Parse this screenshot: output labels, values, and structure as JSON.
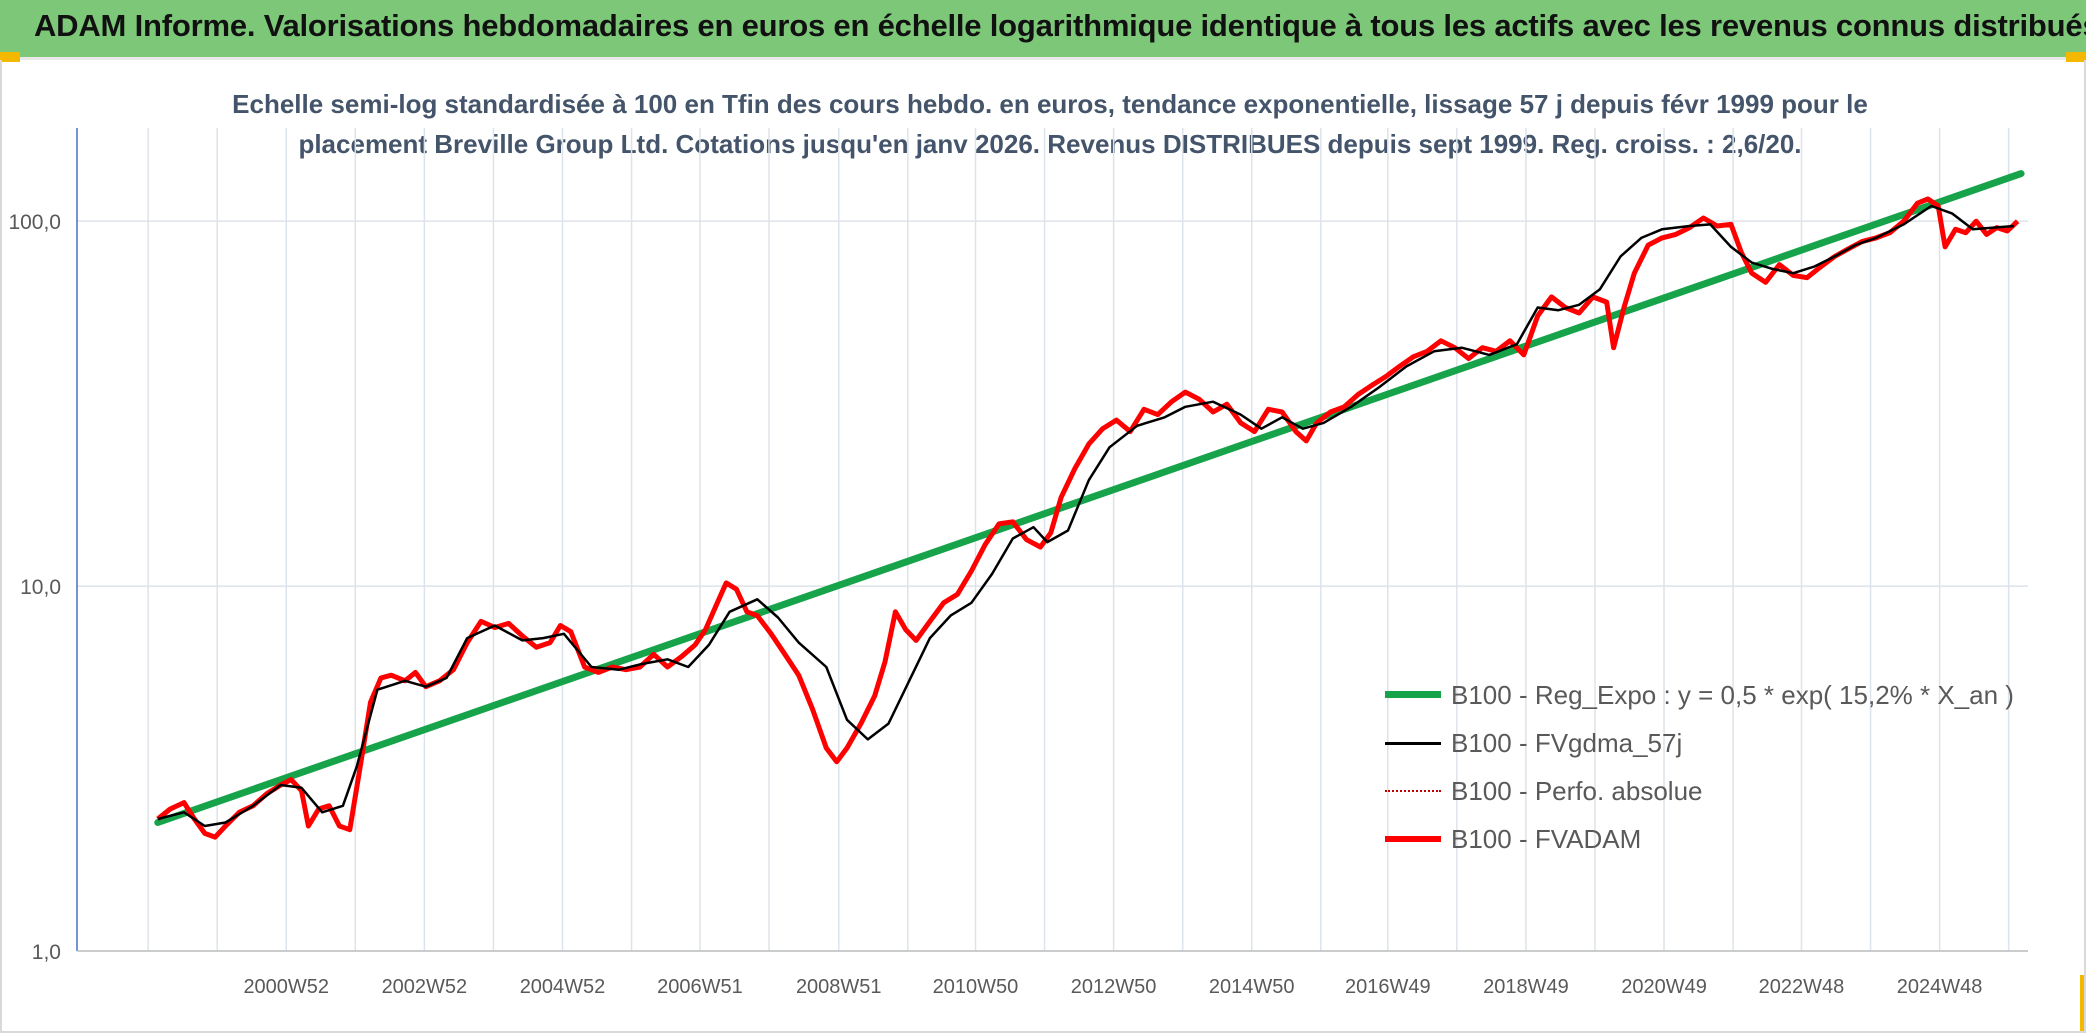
{
  "header": {
    "title": "ADAM Informe. Valorisations hebdomadaires en euros en échelle logarithmique identique à tous les actifs avec les revenus connus distribués"
  },
  "chart_data": {
    "type": "line",
    "title": "",
    "subtitle_lines": [
      "Echelle semi-log standardisée à 100 en Tfin des cours hebdo. en euros, tendance exponentielle, lissage 57 j depuis févr 1999 pour le",
      "placement Breville Group Ltd. Cotations jusqu'en janv 2026. Revenus DISTRIBUES depuis sept 1999. Reg. croiss. : 2,6/20."
    ],
    "xlabel": "",
    "ylabel": "",
    "y_scale": "log",
    "ylim": [
      1,
      180
    ],
    "xlim": [
      1997.95,
      2026.2
    ],
    "y_ticks": [
      1,
      10,
      100
    ],
    "y_tick_labels": [
      "1,0",
      "10,0",
      "100,0"
    ],
    "x_ticks": [
      2000.98,
      2002.98,
      2004.98,
      2006.97,
      2008.98,
      2010.96,
      2012.96,
      2014.96,
      2016.93,
      2018.93,
      2020.93,
      2022.92,
      2024.92
    ],
    "x_tick_labels": [
      "2000W52",
      "2002W52",
      "2004W52",
      "2006W51",
      "2008W51",
      "2010W50",
      "2012W50",
      "2014W50",
      "2016W49",
      "2018W49",
      "2020W49",
      "2022W48",
      "2024W48"
    ],
    "grid": true,
    "legend_position": "bottom-right",
    "series": [
      {
        "name": "B100 - Reg_Expo : y = 0,5 * exp( 15,2% *  X_an )",
        "color": "#16a34a",
        "style": "solid-thick",
        "x": [
          1999.12,
          2026.1
        ],
        "y": [
          2.25,
          135
        ]
      },
      {
        "name": "B100 - FVgdma_57j",
        "color": "#000000",
        "style": "solid",
        "x": [
          1999.12,
          1999.5,
          1999.8,
          2000.1,
          2000.5,
          2000.9,
          2001.2,
          2001.5,
          2001.8,
          2002.0,
          2002.3,
          2002.7,
          2003.0,
          2003.3,
          2003.6,
          2004.0,
          2004.4,
          2004.7,
          2005.0,
          2005.4,
          2005.8,
          2006.1,
          2006.5,
          2006.8,
          2007.1,
          2007.4,
          2007.8,
          2008.1,
          2008.4,
          2008.8,
          2009.1,
          2009.4,
          2009.7,
          2010.0,
          2010.3,
          2010.6,
          2010.9,
          2011.2,
          2011.5,
          2011.8,
          2012.0,
          2012.3,
          2012.6,
          2012.9,
          2013.3,
          2013.7,
          2014.0,
          2014.4,
          2014.8,
          2015.1,
          2015.4,
          2015.7,
          2016.0,
          2016.4,
          2016.8,
          2017.2,
          2017.6,
          2018.0,
          2018.4,
          2018.8,
          2019.1,
          2019.4,
          2019.7,
          2020.0,
          2020.3,
          2020.6,
          2020.9,
          2021.3,
          2021.6,
          2021.9,
          2022.2,
          2022.5,
          2022.8,
          2023.1,
          2023.4,
          2023.7,
          2024.0,
          2024.4,
          2024.8,
          2025.1,
          2025.4,
          2025.7,
          2026.0
        ],
        "y": [
          2.3,
          2.4,
          2.2,
          2.25,
          2.5,
          2.85,
          2.8,
          2.4,
          2.5,
          3.2,
          5.2,
          5.5,
          5.3,
          5.6,
          7.2,
          7.8,
          7.1,
          7.2,
          7.4,
          6.0,
          5.9,
          6.1,
          6.3,
          6.0,
          6.9,
          8.5,
          9.2,
          8.2,
          7.0,
          6.0,
          4.3,
          3.8,
          4.2,
          5.5,
          7.2,
          8.3,
          9.0,
          10.8,
          13.5,
          14.5,
          13.2,
          14.2,
          19.5,
          24.0,
          27.5,
          29.0,
          31.0,
          32.0,
          29.5,
          27.0,
          29.0,
          27.0,
          28.0,
          31.0,
          35.0,
          40.0,
          44.0,
          45.0,
          43.0,
          46.0,
          58.0,
          57.0,
          59.0,
          65.0,
          80.0,
          90.0,
          95.0,
          97.0,
          98.0,
          85.0,
          77.0,
          74.0,
          72.0,
          75.0,
          80.0,
          86.0,
          90.0,
          98.0,
          110.0,
          105.0,
          95.0,
          96.0,
          97.0
        ]
      },
      {
        "name": "B100 - Perfo. absolue",
        "color": "#c00000",
        "style": "dotted",
        "x": [],
        "y": []
      },
      {
        "name": "B100 - FVADAM",
        "color": "#ff0000",
        "style": "solid-thick",
        "x": [
          1999.12,
          1999.3,
          1999.5,
          1999.65,
          1999.8,
          1999.95,
          2000.1,
          2000.3,
          2000.5,
          2000.7,
          2000.9,
          2001.05,
          2001.2,
          2001.3,
          2001.45,
          2001.6,
          2001.75,
          2001.9,
          2002.05,
          2002.2,
          2002.35,
          2002.5,
          2002.7,
          2002.85,
          2003.0,
          2003.2,
          2003.4,
          2003.6,
          2003.8,
          2004.0,
          2004.2,
          2004.4,
          2004.6,
          2004.8,
          2004.95,
          2005.1,
          2005.3,
          2005.5,
          2005.7,
          2005.9,
          2006.1,
          2006.3,
          2006.5,
          2006.7,
          2006.9,
          2007.05,
          2007.2,
          2007.35,
          2007.5,
          2007.65,
          2007.8,
          2008.0,
          2008.2,
          2008.4,
          2008.6,
          2008.8,
          2008.95,
          2009.1,
          2009.3,
          2009.5,
          2009.65,
          2009.8,
          2009.95,
          2010.1,
          2010.3,
          2010.5,
          2010.7,
          2010.9,
          2011.1,
          2011.3,
          2011.5,
          2011.7,
          2011.9,
          2012.05,
          2012.2,
          2012.4,
          2012.6,
          2012.8,
          2013.0,
          2013.2,
          2013.4,
          2013.6,
          2013.8,
          2014.0,
          2014.2,
          2014.4,
          2014.6,
          2014.8,
          2015.0,
          2015.2,
          2015.4,
          2015.6,
          2015.75,
          2015.9,
          2016.1,
          2016.3,
          2016.5,
          2016.7,
          2016.9,
          2017.1,
          2017.3,
          2017.5,
          2017.7,
          2017.9,
          2018.1,
          2018.3,
          2018.5,
          2018.7,
          2018.9,
          2019.1,
          2019.3,
          2019.5,
          2019.7,
          2019.9,
          2020.1,
          2020.2,
          2020.35,
          2020.5,
          2020.7,
          2020.9,
          2021.1,
          2021.3,
          2021.5,
          2021.7,
          2021.9,
          2022.05,
          2022.2,
          2022.4,
          2022.6,
          2022.8,
          2023.0,
          2023.2,
          2023.4,
          2023.6,
          2023.8,
          2024.0,
          2024.2,
          2024.4,
          2024.6,
          2024.75,
          2024.9,
          2025.0,
          2025.15,
          2025.3,
          2025.45,
          2025.6,
          2025.75,
          2025.9,
          2026.05
        ],
        "y": [
          2.3,
          2.45,
          2.55,
          2.3,
          2.1,
          2.05,
          2.2,
          2.4,
          2.5,
          2.7,
          2.85,
          2.95,
          2.75,
          2.2,
          2.45,
          2.5,
          2.2,
          2.15,
          3.2,
          4.8,
          5.6,
          5.7,
          5.5,
          5.8,
          5.3,
          5.5,
          5.9,
          7.0,
          8.0,
          7.7,
          7.9,
          7.3,
          6.8,
          7.0,
          7.8,
          7.5,
          6.0,
          5.8,
          6.0,
          5.9,
          6.0,
          6.5,
          6.0,
          6.4,
          6.9,
          7.6,
          8.8,
          10.2,
          9.8,
          8.5,
          8.3,
          7.4,
          6.5,
          5.7,
          4.6,
          3.6,
          3.3,
          3.6,
          4.2,
          5.0,
          6.2,
          8.5,
          7.6,
          7.1,
          8.0,
          9.0,
          9.5,
          11.0,
          13.0,
          14.8,
          15.0,
          13.4,
          12.8,
          14.0,
          17.5,
          21.0,
          24.5,
          27.0,
          28.5,
          26.5,
          30.5,
          29.5,
          32.0,
          34.0,
          32.5,
          30.0,
          31.5,
          28.0,
          26.5,
          30.5,
          30.0,
          26.5,
          25.0,
          28.0,
          30.0,
          31.0,
          33.5,
          35.5,
          37.5,
          40.0,
          42.5,
          44.0,
          47.0,
          45.0,
          42.0,
          45.0,
          44.0,
          47.0,
          43.0,
          55.0,
          62.0,
          58.0,
          56.0,
          62.0,
          60.0,
          45.0,
          58.0,
          72.0,
          86.0,
          90.0,
          92.0,
          96.0,
          102.0,
          97.0,
          98.0,
          82.0,
          72.0,
          68.0,
          76.0,
          71.0,
          70.0,
          75.0,
          80.0,
          84.0,
          88.0,
          90.0,
          93.0,
          100.0,
          112.0,
          115.0,
          110.0,
          85.0,
          95.0,
          93.0,
          100.0,
          92.0,
          96.0,
          94.0,
          100.0
        ]
      }
    ]
  }
}
